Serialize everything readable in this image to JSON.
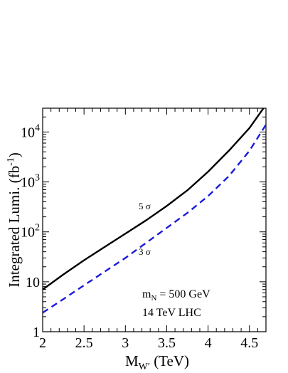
{
  "chart_data": {
    "type": "line",
    "title": "",
    "xlabel": {
      "main": "M",
      "sub": "W′",
      "unit": " (TeV)"
    },
    "ylabel": {
      "main": "Integrated Lumi. (fb",
      "sup": "-1",
      "close": ")"
    },
    "xlim": [
      2.0,
      4.7
    ],
    "ylim": [
      1,
      30000
    ],
    "yscale": "log",
    "x_ticks": [
      {
        "value": 2.0,
        "label": "2"
      },
      {
        "value": 2.5,
        "label": "2.5"
      },
      {
        "value": 3.0,
        "label": "3"
      },
      {
        "value": 3.5,
        "label": "3.5"
      },
      {
        "value": 4.0,
        "label": "4"
      },
      {
        "value": 4.5,
        "label": "4.5"
      }
    ],
    "y_ticks": [
      {
        "value": 1,
        "base": "1",
        "exp": ""
      },
      {
        "value": 10,
        "base": "10",
        "exp": ""
      },
      {
        "value": 100,
        "base": "10",
        "exp": "2"
      },
      {
        "value": 1000,
        "base": "10",
        "exp": "3"
      },
      {
        "value": 10000,
        "base": "10",
        "exp": "4"
      }
    ],
    "grid": false,
    "series": [
      {
        "label": "5 σ",
        "color": "#000000",
        "dash": "solid",
        "x": [
          2.0,
          2.25,
          2.5,
          2.75,
          3.0,
          3.25,
          3.5,
          3.75,
          4.0,
          4.25,
          4.5,
          4.67
        ],
        "y": [
          7,
          14,
          27,
          50,
          92,
          170,
          330,
          680,
          1600,
          4200,
          12000,
          30000
        ]
      },
      {
        "label": "3 σ",
        "color": "#1a1adb",
        "dash": "dashed",
        "x": [
          2.0,
          2.25,
          2.5,
          2.75,
          3.0,
          3.25,
          3.5,
          3.75,
          4.0,
          4.25,
          4.5,
          4.7
        ],
        "y": [
          2.4,
          4.5,
          8.5,
          16,
          30,
          60,
          120,
          240,
          520,
          1300,
          4200,
          14000
        ]
      }
    ],
    "annotations": {
      "mass_main": "m",
      "mass_sub": "N",
      "mass_value": " = 500 GeV",
      "collider": "14 TeV LHC"
    }
  }
}
